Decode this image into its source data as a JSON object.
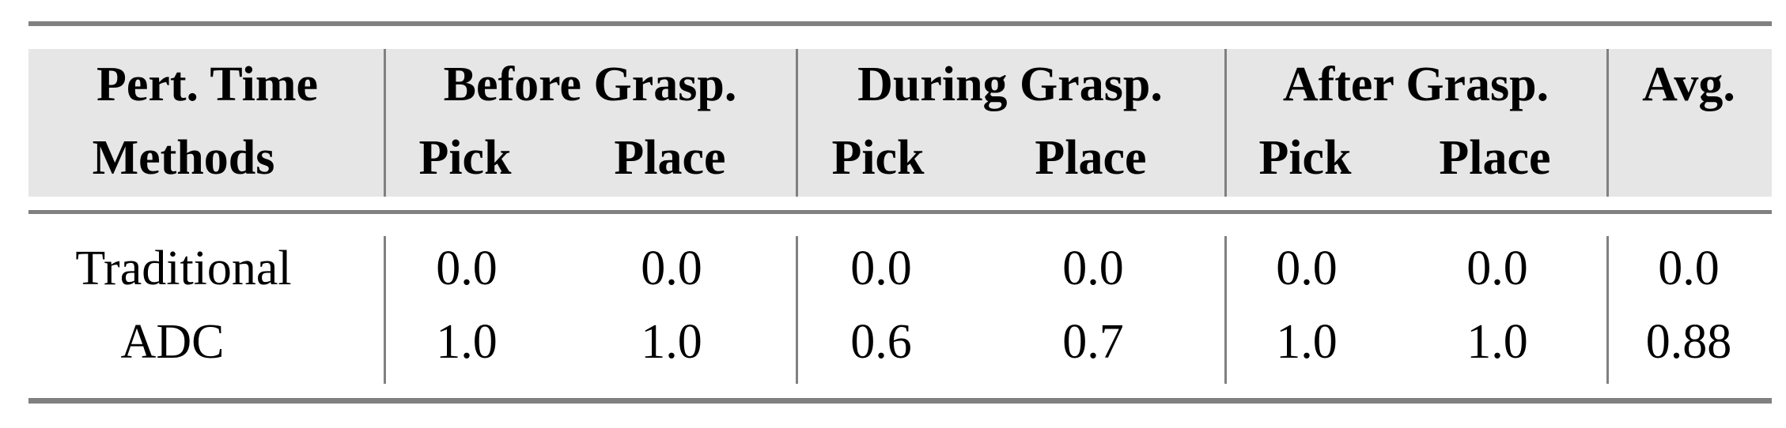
{
  "table": {
    "header_row1": [
      "Pert. Time",
      "Before Grasp.",
      "During Grasp.",
      "After Grasp.",
      "Avg."
    ],
    "header_row2": [
      "Methods",
      "Pick",
      "Place",
      "Pick",
      "Place",
      "Pick",
      "Place"
    ],
    "rows": [
      {
        "method": "Traditional",
        "values": [
          "0.0",
          "0.0",
          "0.0",
          "0.0",
          "0.0",
          "0.0",
          "0.0"
        ]
      },
      {
        "method": "ADC",
        "values": [
          "1.0",
          "1.0",
          "0.6",
          "0.7",
          "1.0",
          "1.0",
          "0.88"
        ]
      }
    ],
    "colors": {
      "header_bg": "#e6e6e6",
      "rules": "#808080"
    }
  }
}
